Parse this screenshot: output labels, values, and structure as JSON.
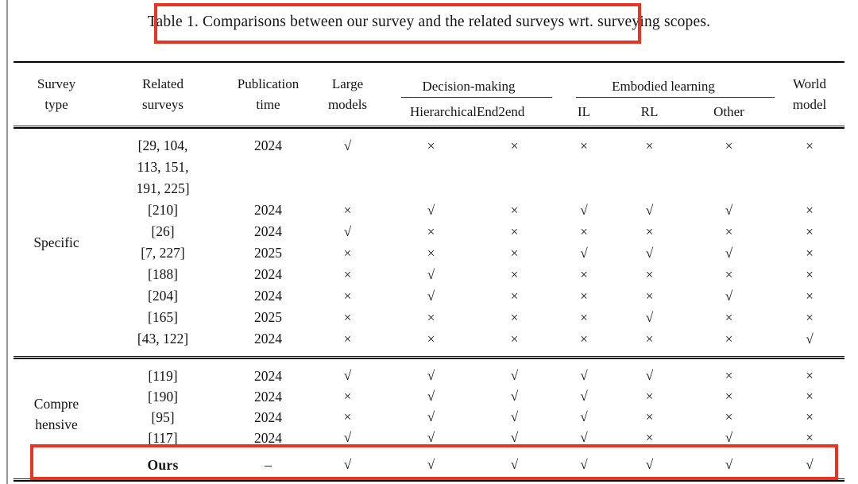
{
  "caption": {
    "text": "Table 1. Comparisons between our survey and the related surveys wrt. surveying scopes."
  },
  "annotations": {
    "highlight_color": "#ea3323",
    "title_box": "highlights caption text from 'Comparisons' through 'wrt.'",
    "ours_box": "highlights the Ours row"
  },
  "table": {
    "headers": {
      "survey_type": "Survey\ntype",
      "related_surveys": "Related\nsurveys",
      "publication_time": "Publication\ntime",
      "large_models": "Large\nmodels",
      "decision_making": "Decision-making",
      "hierarchical": "Hierarchical",
      "end2end": "End2end",
      "embodied_learning": "Embodied learning",
      "il": "IL",
      "rl": "RL",
      "other": "Other",
      "world_model": "World\nmodel"
    },
    "mark_columns": [
      "Large models",
      "Hierarchical",
      "End2end",
      "IL",
      "RL",
      "Other",
      "World model"
    ],
    "sections": [
      {
        "type_label": "Specific",
        "rows": [
          {
            "refs": "[29, 104,\n113, 151,\n191, 225]",
            "time": "2024",
            "marks": [
              "√",
              "×",
              "×",
              "×",
              "×",
              "×",
              "×"
            ]
          },
          {
            "refs": "[210]",
            "time": "2024",
            "marks": [
              "×",
              "√",
              "×",
              "√",
              "√",
              "√",
              "×"
            ]
          },
          {
            "refs": "[26]",
            "time": "2024",
            "marks": [
              "√",
              "×",
              "×",
              "×",
              "×",
              "×",
              "×"
            ]
          },
          {
            "refs": "[7, 227]",
            "time": "2025",
            "marks": [
              "×",
              "×",
              "×",
              "√",
              "√",
              "√",
              "×"
            ]
          },
          {
            "refs": "[188]",
            "time": "2024",
            "marks": [
              "×",
              "√",
              "×",
              "×",
              "×",
              "×",
              "×"
            ]
          },
          {
            "refs": "[204]",
            "time": "2024",
            "marks": [
              "×",
              "√",
              "×",
              "×",
              "×",
              "√",
              "×"
            ]
          },
          {
            "refs": "[165]",
            "time": "2025",
            "marks": [
              "×",
              "×",
              "×",
              "×",
              "√",
              "×",
              "×"
            ]
          },
          {
            "refs": "[43, 122]",
            "time": "2024",
            "marks": [
              "×",
              "×",
              "×",
              "×",
              "×",
              "×",
              "√"
            ]
          }
        ]
      },
      {
        "type_label": "Compre\nhensive",
        "rows": [
          {
            "refs": "[119]",
            "time": "2024",
            "marks": [
              "√",
              "√",
              "√",
              "√",
              "√",
              "×",
              "×"
            ]
          },
          {
            "refs": "[190]",
            "time": "2024",
            "marks": [
              "×",
              "√",
              "√",
              "√",
              "×",
              "×",
              "×"
            ]
          },
          {
            "refs": "[95]",
            "time": "2024",
            "marks": [
              "×",
              "√",
              "√",
              "√",
              "×",
              "×",
              "×"
            ]
          },
          {
            "refs": "[117]",
            "time": "2024",
            "marks": [
              "√",
              "√",
              "√",
              "√",
              "×",
              "√",
              "×"
            ]
          },
          {
            "refs": "Ours",
            "time": "–",
            "marks": [
              "√",
              "√",
              "√",
              "√",
              "√",
              "√",
              "√"
            ]
          }
        ]
      }
    ]
  }
}
